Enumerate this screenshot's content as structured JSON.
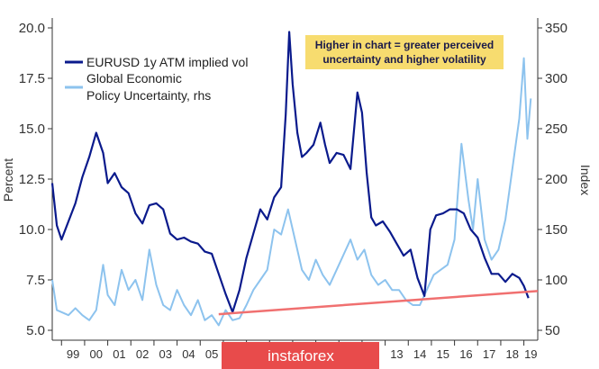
{
  "chart_data": {
    "type": "line",
    "title": "",
    "xlabel": "",
    "ylabel": "Percent",
    "y2label": "Index",
    "ylim": [
      5,
      20
    ],
    "y2lim": [
      50,
      350
    ],
    "yticks": [
      "5.0",
      "7.5",
      "10.0",
      "12.5",
      "15.0",
      "17.5",
      "20.0"
    ],
    "y2ticks": [
      "50",
      "100",
      "150",
      "200",
      "250",
      "300",
      "350"
    ],
    "xlim": [
      1998.6,
      2019.6
    ],
    "xticks": [
      {
        "label": "99",
        "x": 1999.5
      },
      {
        "label": "00",
        "x": 2000.5
      },
      {
        "label": "01",
        "x": 2001.5
      },
      {
        "label": "02",
        "x": 2002.5
      },
      {
        "label": "03",
        "x": 2003.5
      },
      {
        "label": "04",
        "x": 2004.5
      },
      {
        "label": "05",
        "x": 2005.5
      },
      {
        "label": "13",
        "x": 2013.5
      },
      {
        "label": "14",
        "x": 2014.5
      },
      {
        "label": "15",
        "x": 2015.5
      },
      {
        "label": "16",
        "x": 2016.5
      },
      {
        "label": "17",
        "x": 2017.5
      },
      {
        "label": "18",
        "x": 2018.5
      },
      {
        "label": "19",
        "x": 2019.3
      }
    ],
    "legend_position": "top-left",
    "series": [
      {
        "name": "EURUSD 1y ATM implied vol",
        "axis": "left",
        "color": "#0a1a8c",
        "x": [
          1998.6,
          1998.8,
          1999.0,
          1999.3,
          1999.6,
          1999.9,
          2000.2,
          2000.5,
          2000.8,
          2001.0,
          2001.3,
          2001.6,
          2001.9,
          2002.2,
          2002.5,
          2002.8,
          2003.1,
          2003.4,
          2003.7,
          2004.0,
          2004.3,
          2004.6,
          2004.9,
          2005.2,
          2005.5,
          2005.8,
          2006.1,
          2006.4,
          2006.7,
          2007.0,
          2007.3,
          2007.6,
          2007.9,
          2008.2,
          2008.5,
          2008.7,
          2008.85,
          2009.0,
          2009.2,
          2009.4,
          2009.6,
          2009.9,
          2010.2,
          2010.4,
          2010.6,
          2010.9,
          2011.2,
          2011.5,
          2011.8,
          2012.0,
          2012.2,
          2012.4,
          2012.6,
          2012.9,
          2013.2,
          2013.5,
          2013.8,
          2014.1,
          2014.4,
          2014.7,
          2014.95,
          2015.2,
          2015.5,
          2015.8,
          2016.1,
          2016.4,
          2016.7,
          2017.0,
          2017.3,
          2017.6,
          2017.9,
          2018.2,
          2018.5,
          2018.8,
          2019.0,
          2019.2
        ],
        "values": [
          12.3,
          10.2,
          9.5,
          10.4,
          11.3,
          12.6,
          13.6,
          14.8,
          13.8,
          12.3,
          12.8,
          12.1,
          11.8,
          10.8,
          10.3,
          11.2,
          11.3,
          11.0,
          9.8,
          9.5,
          9.6,
          9.4,
          9.3,
          8.9,
          8.8,
          7.8,
          6.8,
          5.9,
          7.0,
          8.6,
          9.8,
          11.0,
          10.5,
          11.6,
          12.1,
          15.7,
          19.8,
          17.2,
          14.8,
          13.6,
          13.8,
          14.2,
          15.3,
          14.2,
          13.3,
          13.8,
          13.7,
          13.0,
          16.8,
          15.8,
          12.8,
          10.6,
          10.2,
          10.4,
          9.9,
          9.3,
          8.7,
          9.0,
          7.6,
          6.7,
          10.0,
          10.7,
          10.8,
          11.0,
          11.0,
          10.8,
          10.0,
          9.6,
          8.6,
          7.8,
          7.8,
          7.4,
          7.8,
          7.6,
          7.2,
          6.6
        ],
        "labels_visible": false
      },
      {
        "name": "Global Economic Policy Uncertainty, rhs",
        "axis": "right",
        "color": "#8dc3ee",
        "x": [
          1998.6,
          1998.8,
          1999.0,
          1999.3,
          1999.6,
          1999.9,
          2000.2,
          2000.5,
          2000.8,
          2001.0,
          2001.3,
          2001.6,
          2001.9,
          2002.2,
          2002.5,
          2002.8,
          2003.1,
          2003.4,
          2003.7,
          2004.0,
          2004.3,
          2004.6,
          2004.9,
          2005.2,
          2005.5,
          2005.8,
          2006.1,
          2006.4,
          2006.7,
          2007.0,
          2007.3,
          2007.6,
          2007.9,
          2008.2,
          2008.5,
          2008.8,
          2009.1,
          2009.4,
          2009.7,
          2010.0,
          2010.3,
          2010.6,
          2010.9,
          2011.2,
          2011.5,
          2011.8,
          2012.1,
          2012.4,
          2012.7,
          2013.0,
          2013.3,
          2013.6,
          2013.9,
          2014.2,
          2014.5,
          2014.8,
          2015.1,
          2015.4,
          2015.7,
          2016.0,
          2016.3,
          2016.6,
          2016.8,
          2017.0,
          2017.3,
          2017.6,
          2017.9,
          2018.2,
          2018.5,
          2018.8,
          2019.0,
          2019.15,
          2019.3
        ],
        "values": [
          100,
          70,
          68,
          65,
          72,
          65,
          60,
          70,
          115,
          85,
          75,
          110,
          90,
          100,
          80,
          130,
          95,
          75,
          70,
          90,
          75,
          65,
          80,
          60,
          65,
          55,
          70,
          60,
          62,
          75,
          90,
          100,
          110,
          150,
          145,
          170,
          140,
          110,
          100,
          120,
          105,
          95,
          110,
          125,
          140,
          120,
          130,
          105,
          95,
          100,
          90,
          90,
          80,
          75,
          75,
          90,
          105,
          110,
          115,
          140,
          235,
          180,
          150,
          200,
          140,
          120,
          130,
          160,
          210,
          260,
          320,
          240,
          280
        ],
        "labels_visible": false
      }
    ],
    "annotations": [
      {
        "text": "Higher in chart = greater perceived uncertainty and higher volatility",
        "lines": [
          "Higher in chart = greater perceived",
          "uncertainty and higher volatility"
        ],
        "position": "top-right"
      },
      {
        "type": "trendline",
        "color": "#f07070",
        "from": {
          "x": 2005.8,
          "y": 5.8
        },
        "to": {
          "x": 2019.6,
          "y": 6.95
        }
      }
    ],
    "grid": false
  },
  "watermark": {
    "text": "instaforex",
    "color": "#e84b4b"
  },
  "colors": {
    "accent": "#0a1a8c",
    "secondary": "#8dc3ee",
    "note_bg": "#f7dc6f",
    "trend": "#f07070"
  }
}
